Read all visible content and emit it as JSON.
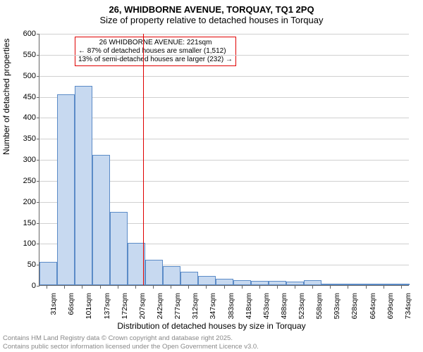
{
  "title_main": "26, WHIDBORNE AVENUE, TORQUAY, TQ1 2PQ",
  "title_sub": "Size of property relative to detached houses in Torquay",
  "chart": {
    "type": "histogram",
    "ylabel": "Number of detached properties",
    "xlabel": "Distribution of detached houses by size in Torquay",
    "ylim": [
      0,
      600
    ],
    "ytick_step": 50,
    "bar_fill": "#c7d9f0",
    "bar_border": "#5b8bc7",
    "grid_color": "#d0d0d0",
    "axis_color": "#666666",
    "marker_color": "#e00000",
    "marker_x": 221,
    "x_tick_labels": [
      "31sqm",
      "66sqm",
      "101sqm",
      "137sqm",
      "172sqm",
      "207sqm",
      "242sqm",
      "277sqm",
      "312sqm",
      "347sqm",
      "383sqm",
      "418sqm",
      "453sqm",
      "488sqm",
      "523sqm",
      "558sqm",
      "593sqm",
      "628sqm",
      "664sqm",
      "699sqm",
      "734sqm"
    ],
    "x_tick_positions": [
      31,
      66,
      101,
      137,
      172,
      207,
      242,
      277,
      312,
      347,
      383,
      418,
      453,
      488,
      523,
      558,
      593,
      628,
      664,
      699,
      734
    ],
    "x_range": [
      15,
      750
    ],
    "bars": [
      {
        "x0": 15,
        "x1": 50,
        "y": 55
      },
      {
        "x0": 50,
        "x1": 85,
        "y": 455
      },
      {
        "x0": 85,
        "x1": 120,
        "y": 475
      },
      {
        "x0": 120,
        "x1": 155,
        "y": 310
      },
      {
        "x0": 155,
        "x1": 190,
        "y": 175
      },
      {
        "x0": 190,
        "x1": 225,
        "y": 100
      },
      {
        "x0": 225,
        "x1": 260,
        "y": 60
      },
      {
        "x0": 260,
        "x1": 295,
        "y": 45
      },
      {
        "x0": 295,
        "x1": 330,
        "y": 32
      },
      {
        "x0": 330,
        "x1": 365,
        "y": 22
      },
      {
        "x0": 365,
        "x1": 400,
        "y": 15
      },
      {
        "x0": 400,
        "x1": 435,
        "y": 12
      },
      {
        "x0": 435,
        "x1": 470,
        "y": 10
      },
      {
        "x0": 470,
        "x1": 505,
        "y": 10
      },
      {
        "x0": 505,
        "x1": 540,
        "y": 8
      },
      {
        "x0": 540,
        "x1": 575,
        "y": 12
      },
      {
        "x0": 575,
        "x1": 610,
        "y": 2
      },
      {
        "x0": 610,
        "x1": 645,
        "y": 2
      },
      {
        "x0": 645,
        "x1": 680,
        "y": 1
      },
      {
        "x0": 680,
        "x1": 715,
        "y": 1
      },
      {
        "x0": 715,
        "x1": 750,
        "y": 2
      }
    ],
    "annotation": {
      "line1": "26 WHIDBORNE AVENUE: 221sqm",
      "line2": "← 87% of detached houses are smaller (1,512)",
      "line3": "13% of semi-detached houses are larger (232) →"
    }
  },
  "footer": {
    "line1": "Contains HM Land Registry data © Crown copyright and database right 2025.",
    "line2": "Contains public sector information licensed under the Open Government Licence v3.0."
  }
}
